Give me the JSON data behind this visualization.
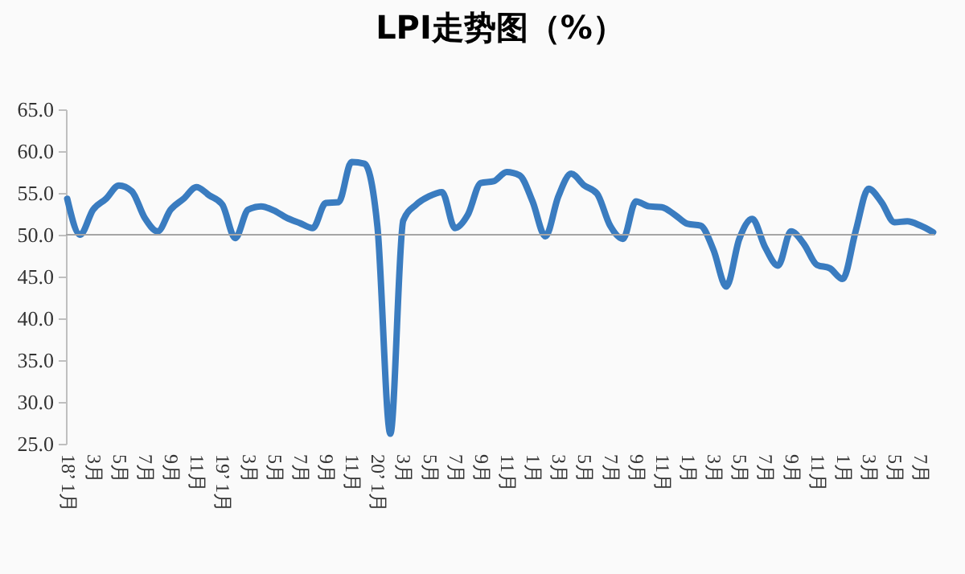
{
  "chart_data": {
    "type": "line",
    "title": "LPI走势图（%）",
    "categories": [
      "18’ 1月",
      null,
      "3月",
      null,
      "5月",
      null,
      "7月",
      null,
      "9月",
      null,
      "11月",
      null,
      "19’ 1月",
      null,
      "3月",
      null,
      "5月",
      null,
      "7月",
      null,
      "9月",
      null,
      "11月",
      null,
      "20’ 1月",
      null,
      "3月",
      null,
      "5月",
      null,
      "7月",
      null,
      "9月",
      null,
      "11月",
      null,
      "1月",
      null,
      "3月",
      null,
      "5月",
      null,
      "7月",
      null,
      "9月",
      null,
      "11月",
      null,
      "1月",
      null,
      "3月",
      null,
      "5月",
      null,
      "7月",
      null,
      "9月",
      null,
      "11月",
      null,
      "1月",
      null,
      "3月",
      null,
      "5月",
      null,
      "7月",
      null
    ],
    "series": [
      {
        "color": "#3a7cc0",
        "values": [
          54.3,
          50.0,
          53.0,
          54.3,
          55.9,
          55.2,
          52.0,
          50.4,
          53.0,
          54.3,
          55.7,
          54.7,
          53.6,
          49.6,
          53.0,
          53.4,
          52.9,
          52.0,
          51.4,
          50.8,
          53.8,
          53.9,
          58.7,
          58.5,
          51.0,
          26.2,
          51.7,
          53.6,
          54.6,
          55.1,
          50.8,
          52.4,
          56.2,
          56.4,
          57.5,
          57.1,
          54.0,
          49.8,
          54.6,
          57.3,
          55.9,
          54.9,
          51.1,
          49.5,
          54.0,
          53.4,
          53.3,
          52.4,
          51.3,
          51.1,
          48.2,
          43.8,
          49.5,
          51.9,
          48.5,
          46.3,
          50.4,
          48.9,
          46.4,
          46.0,
          44.7,
          50.4,
          55.5,
          53.9,
          51.5,
          51.6,
          51.1,
          50.3
        ]
      }
    ],
    "ylim": [
      25,
      65
    ],
    "yticks": [
      {
        "value": 25,
        "label": "25.0"
      },
      {
        "value": 30,
        "label": "30.0"
      },
      {
        "value": 35,
        "label": "35.0"
      },
      {
        "value": 40,
        "label": "40.0"
      },
      {
        "value": 45,
        "label": "45.0"
      },
      {
        "value": 50,
        "label": "50.0"
      },
      {
        "value": 55,
        "label": "55.0"
      },
      {
        "value": 60,
        "label": "60.0"
      },
      {
        "value": 65,
        "label": "65.0"
      }
    ],
    "ref_lines": [
      {
        "axis": "y",
        "value": 50,
        "color": "#a6a6a6"
      }
    ],
    "grid": false,
    "legend": false,
    "marker": "none",
    "line_style": "solid"
  }
}
